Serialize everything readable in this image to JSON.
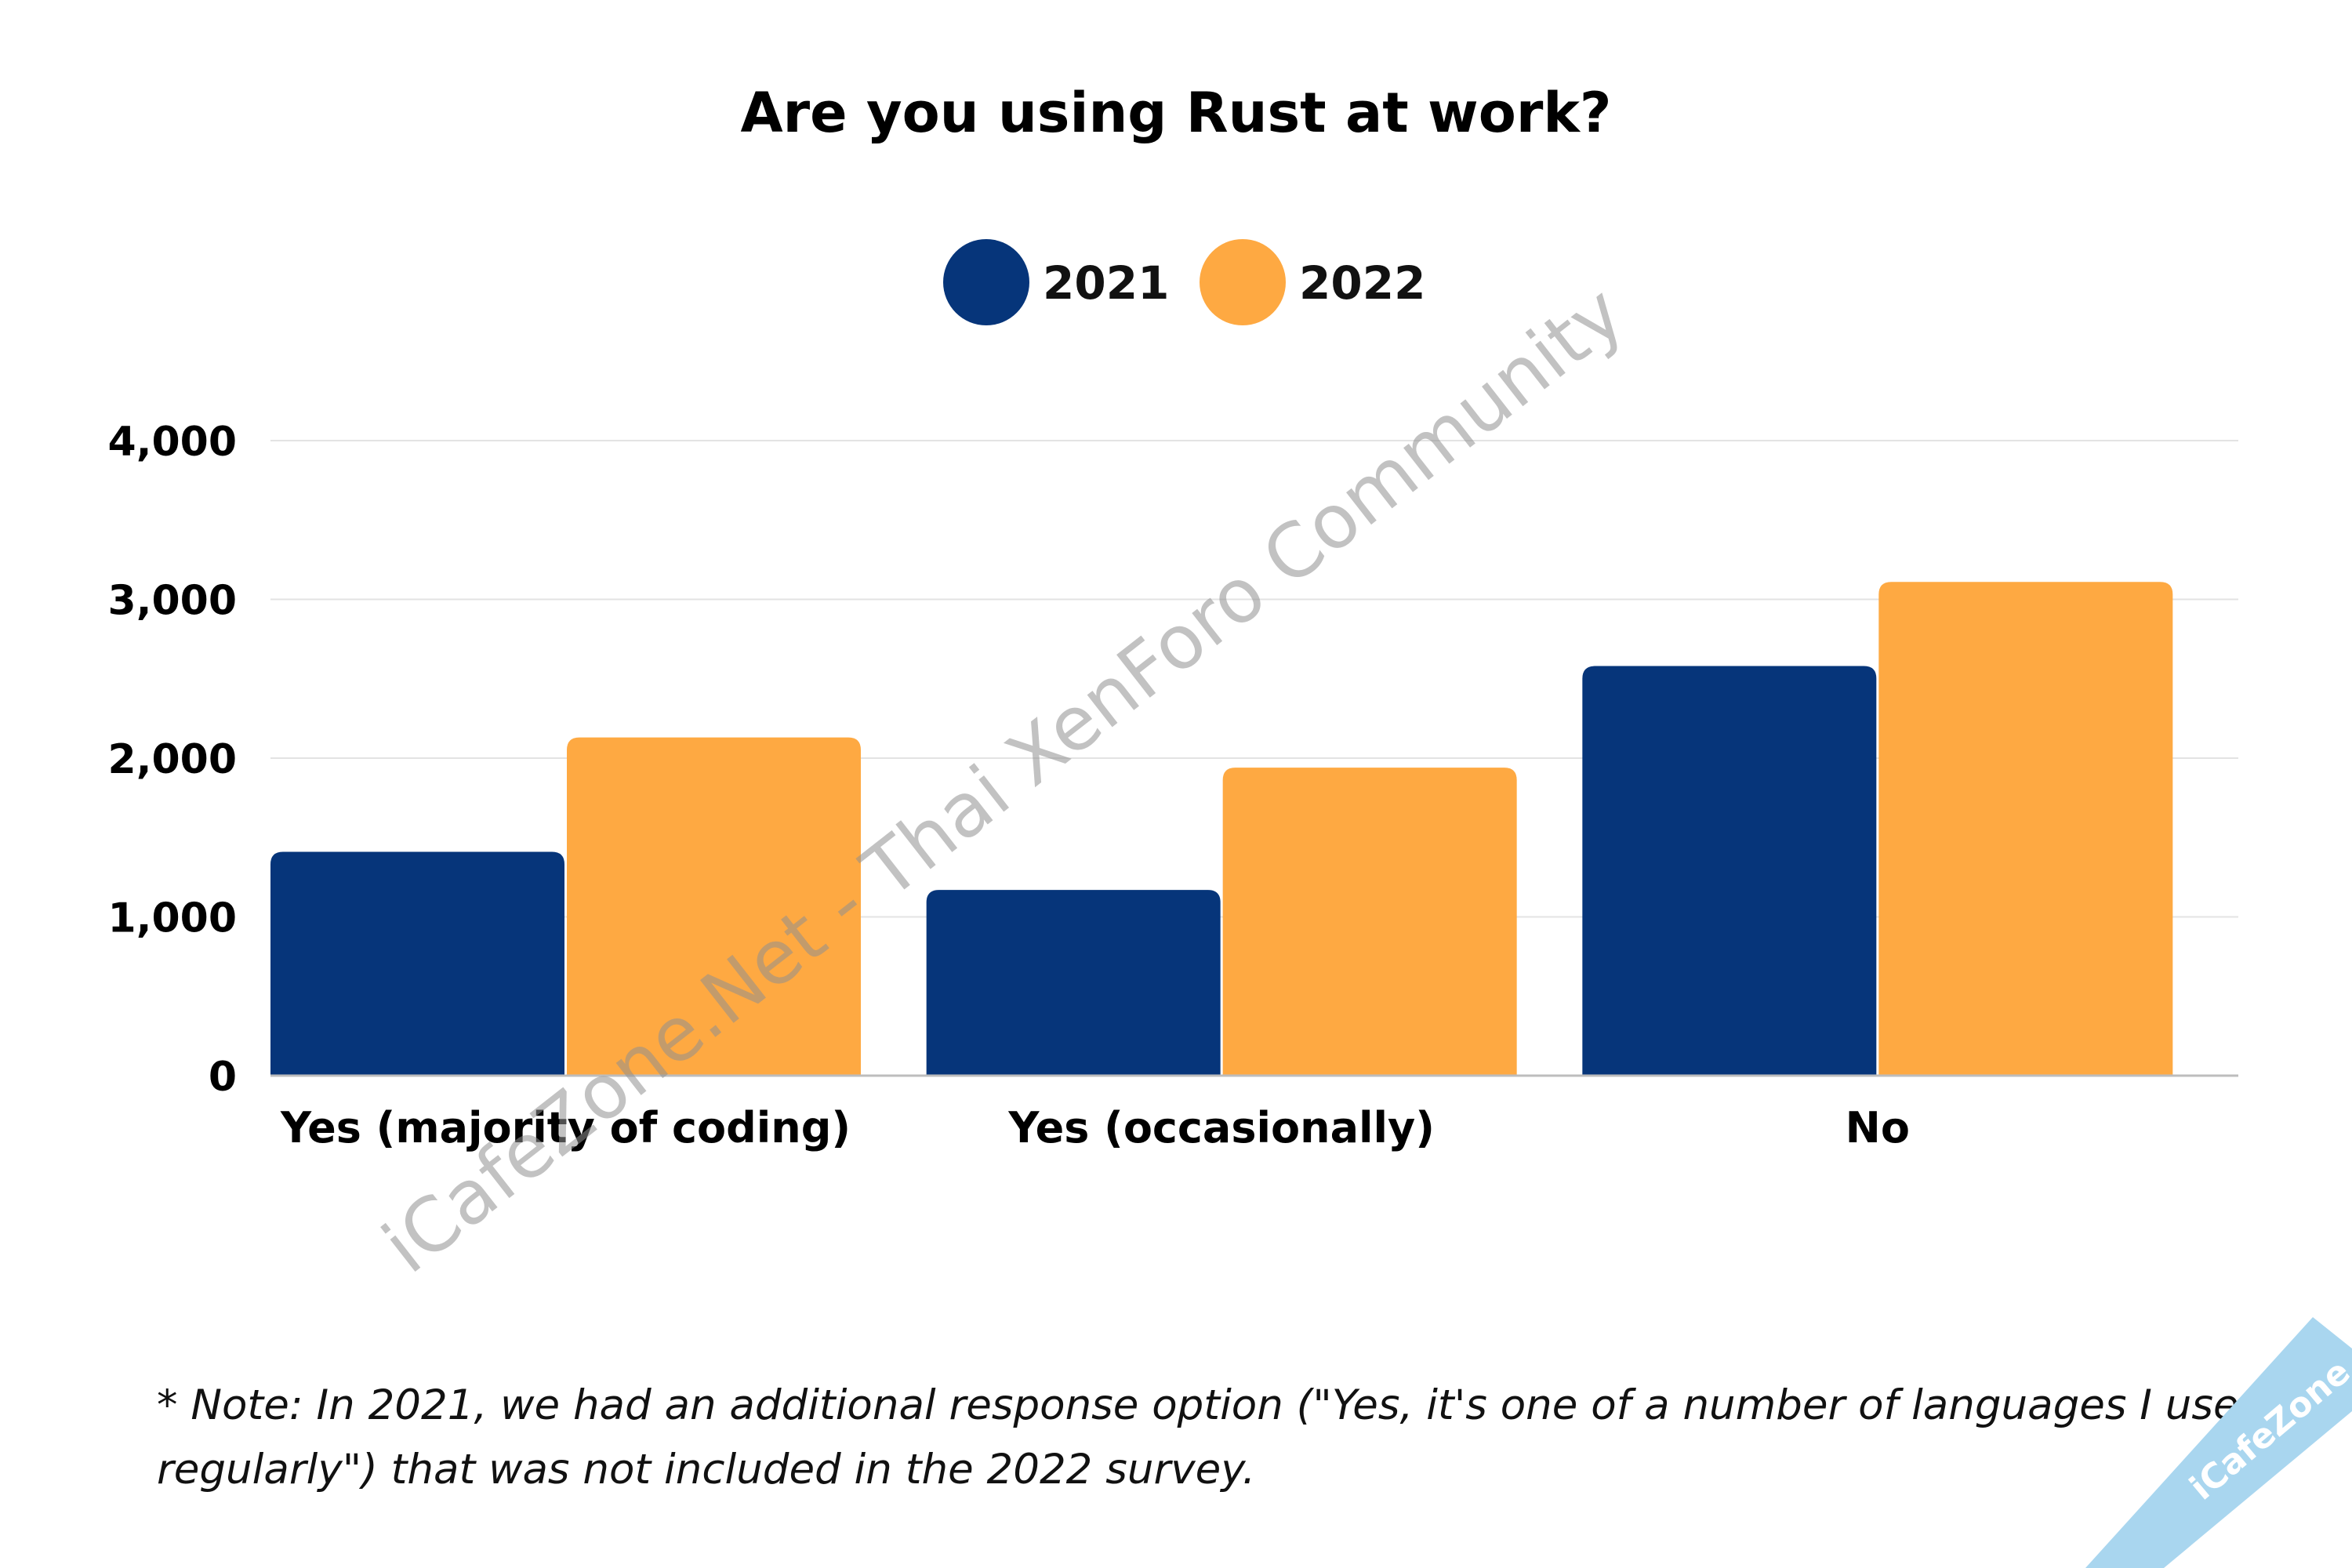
{
  "chart_data": {
    "type": "bar",
    "title": "Are you using Rust at work?",
    "categories": [
      "Yes (majority of coding)",
      "Yes (occasionally)",
      "No"
    ],
    "series": [
      {
        "name": "2021",
        "color": "#06357a",
        "values": [
          1410,
          1170,
          2580
        ]
      },
      {
        "name": "2022",
        "color": "#fea942",
        "values": [
          2130,
          1940,
          3110
        ]
      }
    ],
    "y_ticks": [
      "0",
      "1,000",
      "2,000",
      "3,000",
      "4,000"
    ],
    "ylim": [
      0,
      4000
    ],
    "grid": true,
    "legend_position": "top-center",
    "note": {
      "line1": "* Note: In 2021, we had an additional response option (\"Yes, it's one of a number of languages I use",
      "line2": "regularly\") that was not included in the 2022 survey."
    }
  },
  "watermark": "iCafeZone.Net - Thai XenForo Community",
  "ribbon": {
    "text": "iCafeZone",
    "color": "#a9d6ef"
  }
}
